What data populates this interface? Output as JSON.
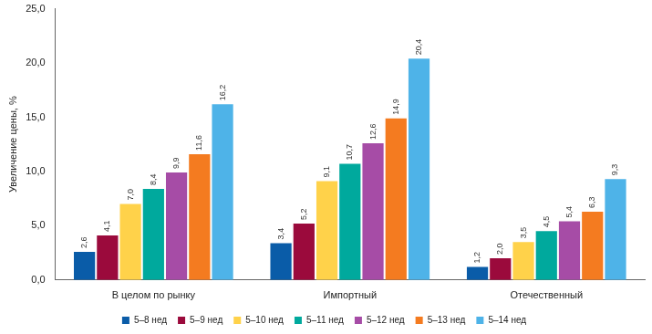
{
  "chart_data": {
    "type": "bar",
    "y_label": "Увеличение цены, %",
    "categories": [
      "В целом по рынку",
      "Импортный",
      "Отечественный"
    ],
    "series": [
      {
        "name": "5–8 нед",
        "color": "#0a5ca8",
        "values": [
          2.6,
          3.4,
          1.2
        ],
        "value_labels": [
          "2,6",
          "3,4",
          "1,2"
        ]
      },
      {
        "name": "5–9 нед",
        "color": "#9b0a3c",
        "values": [
          4.1,
          5.2,
          2.0
        ],
        "value_labels": [
          "4,1",
          "5,2",
          "2,0"
        ]
      },
      {
        "name": "5–10 нед",
        "color": "#ffd24a",
        "values": [
          7.0,
          9.1,
          3.5
        ],
        "value_labels": [
          "7,0",
          "9,1",
          "3,5"
        ]
      },
      {
        "name": "5–11 нед",
        "color": "#00a99d",
        "values": [
          8.4,
          10.7,
          4.5
        ],
        "value_labels": [
          "8,4",
          "10,7",
          "4,5"
        ]
      },
      {
        "name": "5–12 нед",
        "color": "#a64ca6",
        "values": [
          9.9,
          12.6,
          5.4
        ],
        "value_labels": [
          "9,9",
          "12,6",
          "5,4"
        ]
      },
      {
        "name": "5–13 нед",
        "color": "#f47b20",
        "values": [
          11.6,
          14.9,
          6.3
        ],
        "value_labels": [
          "11,6",
          "14,9",
          "6,3"
        ]
      },
      {
        "name": "5–14 нед",
        "color": "#4eb3e8",
        "values": [
          16.2,
          20.4,
          9.3
        ],
        "value_labels": [
          "16,2",
          "20,4",
          "9,3"
        ]
      }
    ],
    "ylim": [
      0,
      25
    ],
    "yticks": [
      {
        "value": 0,
        "label": "0,0"
      },
      {
        "value": 5,
        "label": "5,0"
      },
      {
        "value": 10,
        "label": "10,0"
      },
      {
        "value": 15,
        "label": "15,0"
      },
      {
        "value": 20,
        "label": "20,0"
      },
      {
        "value": 25,
        "label": "25,0"
      }
    ],
    "grid": false,
    "legend": "bottom",
    "data_labels": true
  }
}
